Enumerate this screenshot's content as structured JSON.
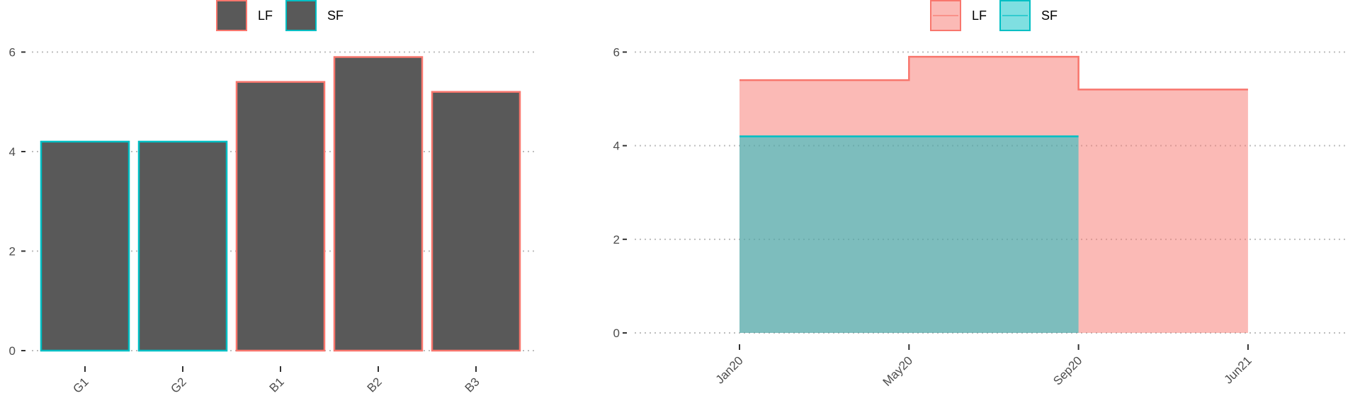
{
  "chart_data": [
    {
      "type": "bar",
      "categories": [
        "G1",
        "G2",
        "B1",
        "B2",
        "B3"
      ],
      "values": [
        4.2,
        4.2,
        5.4,
        5.9,
        5.2
      ],
      "group": [
        "SF",
        "SF",
        "LF",
        "LF",
        "LF"
      ],
      "fill_color": "#595959",
      "legend": {
        "entries": [
          "LF",
          "SF"
        ],
        "placement": "top"
      },
      "ylim": [
        0,
        6
      ],
      "yticks": [
        0,
        2,
        4,
        6
      ],
      "grid": "horizontal dotted",
      "xlabel": "",
      "ylabel": "",
      "title": ""
    },
    {
      "type": "area",
      "step": true,
      "x_ticks": [
        "Jan20",
        "May20",
        "Sep20",
        "Jun21"
      ],
      "series": [
        {
          "name": "LF",
          "segments": [
            {
              "from": "Jan20",
              "to": "May20",
              "value": 5.4
            },
            {
              "from": "May20",
              "to": "Sep20",
              "value": 5.9
            },
            {
              "from": "Sep20",
              "to": "Jun21",
              "value": 5.2
            }
          ]
        },
        {
          "name": "SF",
          "segments": [
            {
              "from": "Jan20",
              "to": "Sep20",
              "value": 4.2
            }
          ]
        }
      ],
      "legend": {
        "entries": [
          "LF",
          "SF"
        ],
        "placement": "top"
      },
      "ylim": [
        0,
        6
      ],
      "yticks": [
        0,
        2,
        4,
        6
      ],
      "grid": "horizontal dotted",
      "xlabel": "",
      "ylabel": "",
      "title": ""
    }
  ],
  "colors": {
    "LF": "#F8766D",
    "SF": "#00BFC4",
    "bar_fill": "#595959",
    "grid": "#bdbdbd",
    "tick_text": "#4d4d4d"
  }
}
